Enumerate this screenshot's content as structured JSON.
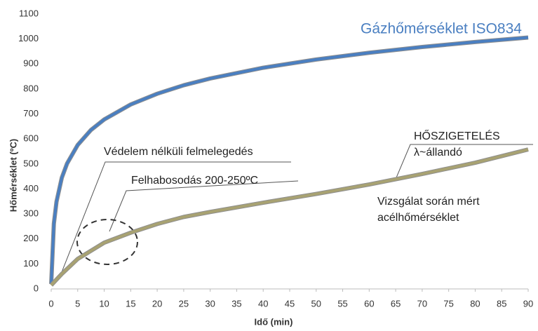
{
  "chart_data": {
    "type": "line",
    "x_label": "Idő (min)",
    "y_label": "Hőmérséklet (ºC)",
    "xlim": [
      0,
      90
    ],
    "xticks": [
      0,
      5,
      10,
      15,
      20,
      25,
      30,
      35,
      40,
      45,
      50,
      55,
      60,
      65,
      70,
      75,
      80,
      85,
      90
    ],
    "ylim": [
      0,
      1100
    ],
    "yticks": [
      0,
      100,
      200,
      300,
      400,
      500,
      600,
      700,
      800,
      900,
      1000,
      1100
    ],
    "grid": false,
    "series": [
      {
        "name": "Gázhőmérséklet ISO834",
        "color": "#4a7fc1",
        "x": [
          0,
          0.5,
          1,
          2,
          3,
          5,
          7.5,
          10,
          15,
          20,
          25,
          30,
          40,
          50,
          60,
          70,
          80,
          90
        ],
        "values": [
          20,
          261,
          349,
          445,
          502,
          576,
          636,
          678,
          738,
          781,
          815,
          842,
          885,
          918,
          945,
          968,
          988,
          1006
        ]
      },
      {
        "color": "#a8a272",
        "x": [
          0,
          2,
          5,
          10,
          15,
          20,
          25,
          30,
          40,
          50,
          60,
          70,
          80,
          90
        ],
        "values": [
          15,
          60,
          120,
          185,
          225,
          260,
          288,
          308,
          345,
          380,
          418,
          460,
          505,
          558
        ]
      }
    ],
    "annotations": [
      "Védelem nélküli felmelegedés",
      "Felhabosodás 200-250ºC",
      "HŐSZIGETELÉS",
      "λ~állandó",
      "Vizsgálat során mért",
      "acélhőmérséklet"
    ]
  }
}
